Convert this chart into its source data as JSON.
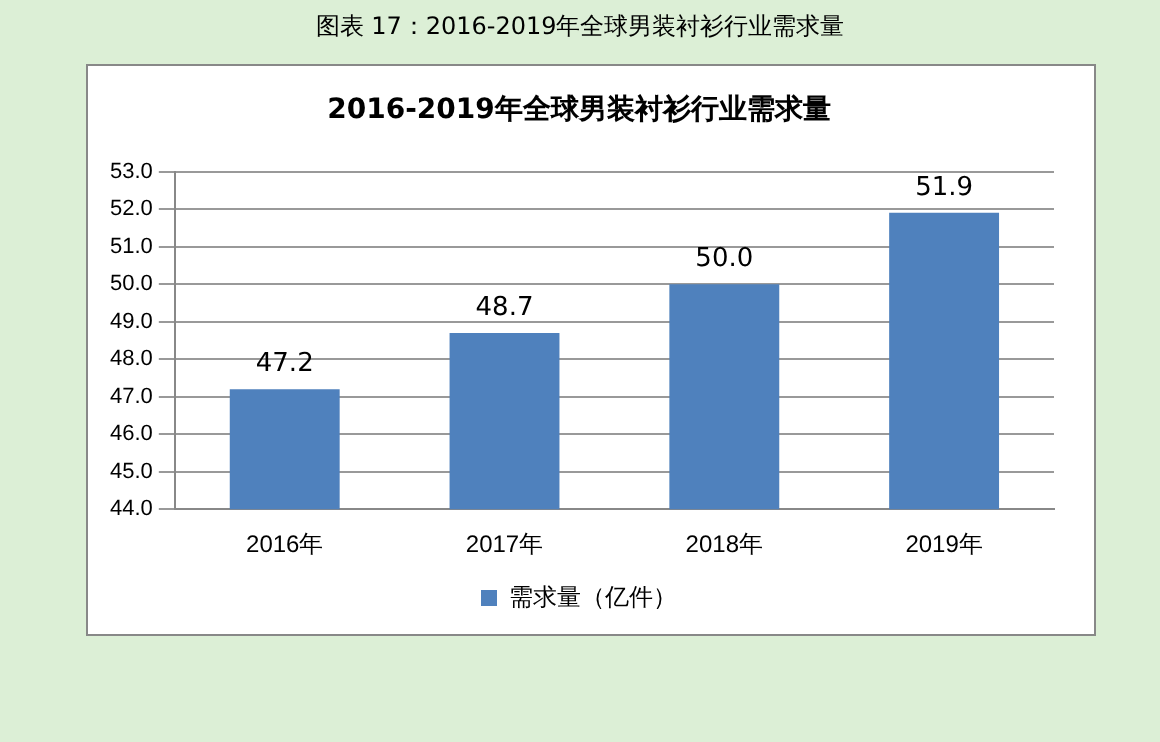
{
  "chart_data": {
    "type": "bar",
    "title": "图表 17：2016-2019年全球男装衬衫行业需求量",
    "subtitle": "2016-2019年全球男装衬衫行业需求量",
    "categories": [
      "2016年",
      "2017年",
      "2018年",
      "2019年"
    ],
    "series": [
      {
        "name": "需求量（亿件）",
        "color": "#4f81bd",
        "values": [
          47.2,
          48.7,
          50.0,
          51.9
        ],
        "value_labels": [
          "47.2",
          "48.7",
          "50.0",
          "51.9"
        ]
      }
    ],
    "ylim": [
      44,
      53
    ],
    "yticks": [
      {
        "value": 44,
        "label": "44.0"
      },
      {
        "value": 45,
        "label": "45.0"
      },
      {
        "value": 46,
        "label": "46.0"
      },
      {
        "value": 47,
        "label": "47.0"
      },
      {
        "value": 48,
        "label": "48.0"
      },
      {
        "value": 49,
        "label": "49.0"
      },
      {
        "value": 50,
        "label": "50.0"
      },
      {
        "value": 51,
        "label": "51.0"
      },
      {
        "value": 52,
        "label": "52.0"
      },
      {
        "value": 53,
        "label": "53.0"
      }
    ],
    "grid": "y",
    "legend": "bottom"
  }
}
